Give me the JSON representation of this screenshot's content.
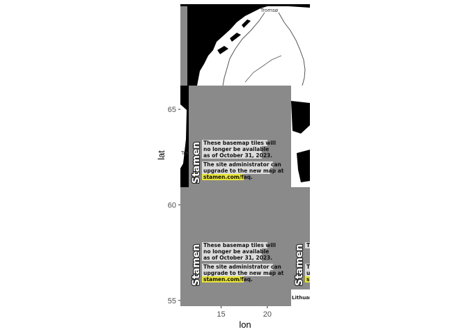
{
  "axes": {
    "xlabel": "lon",
    "ylabel": "lat",
    "x_ticks": [
      "15",
      "20"
    ],
    "y_ticks": [
      "55",
      "60",
      "65"
    ],
    "xlim": [
      10.6,
      24.6
    ],
    "ylim": [
      54.7,
      70.5
    ]
  },
  "map": {
    "basemap": "Stamen toner",
    "notice": {
      "brand": "Stamen",
      "line1": "These basemap tiles will",
      "line2": "no longer be available",
      "line3": "as of October 31, 2023.",
      "line4": "The site administrator can",
      "line5": "upgrade to the new map at",
      "link": "stamen.com/faq.",
      "partial_t": "T",
      "partial_u": "u",
      "partial_s": "s"
    },
    "places": {
      "tromso": "Tromsø",
      "tro_cut": "Tro",
      "lithuania": "Lithuan"
    },
    "colors": {
      "tile_gray": "#8a8a8a",
      "land": "#ffffff",
      "water": "#000000",
      "highlight": "#e8e43a"
    }
  }
}
